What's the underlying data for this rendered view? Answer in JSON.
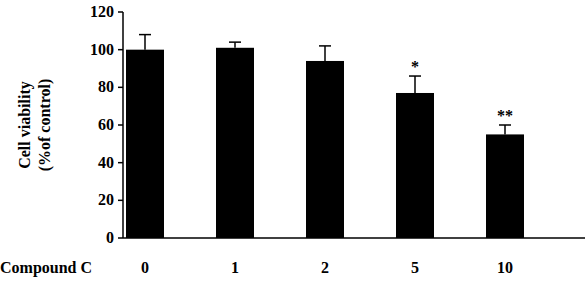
{
  "chart_data": {
    "type": "bar",
    "x_label": "Compound C",
    "y_label": [
      "Cell viability",
      "(%of control)"
    ],
    "categories": [
      "0",
      "1",
      "2",
      "5",
      "10"
    ],
    "values": [
      100,
      101,
      94,
      77,
      55
    ],
    "errors": [
      8,
      3,
      8,
      9,
      5
    ],
    "annotations": [
      {
        "category": "5",
        "text": "*"
      },
      {
        "category": "10",
        "text": "**"
      }
    ],
    "color": "#000000",
    "ylim": [
      0,
      120
    ],
    "yticks": [
      0,
      20,
      40,
      60,
      80,
      100,
      120
    ],
    "grid": false
  }
}
